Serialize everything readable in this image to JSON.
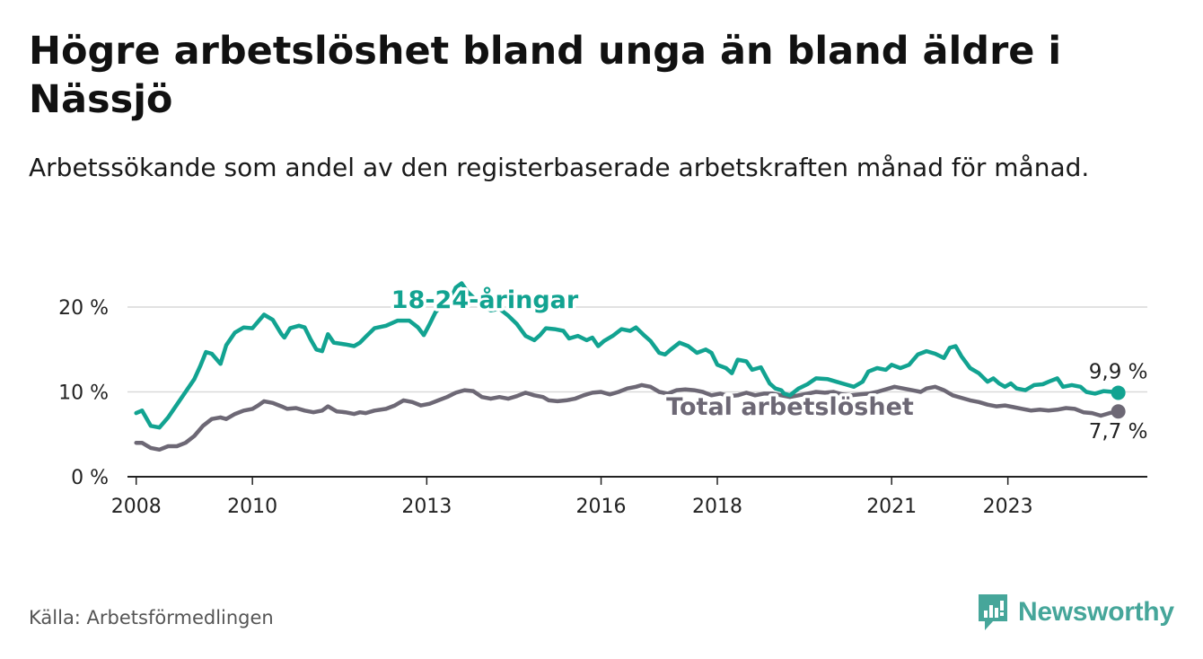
{
  "title": "Högre arbetslöshet bland unga än bland äldre i Nässjö",
  "subtitle": "Arbetssökande som andel av den registerbaserade arbetskraften månad för månad.",
  "source": "Källa: Arbetsförmedlingen",
  "brand": {
    "name": "Newsworthy",
    "icon": "newsworthy-logo-icon",
    "color": "#46a69a"
  },
  "chart_data": {
    "type": "line",
    "title": "Högre arbetslöshet bland unga än bland äldre i Nässjö",
    "xlabel": "",
    "ylabel": "",
    "xlim": [
      2007.85,
      2025.4
    ],
    "ylim": [
      0,
      20
    ],
    "y_ticks": [
      0,
      10,
      20
    ],
    "y_tick_labels": [
      "0 %",
      "10 %",
      "20 %"
    ],
    "x_ticks": [
      2008,
      2010,
      2013,
      2016,
      2018,
      2021,
      2023
    ],
    "x_tick_labels": [
      "2008",
      "2010",
      "2013",
      "2016",
      "2018",
      "2021",
      "2023"
    ],
    "grid": true,
    "series": [
      {
        "name": "18-24-åringar",
        "label": "18-24-åringar",
        "color": "#12a391",
        "end_label": "9,9 %",
        "points": [
          [
            2008.0,
            7.5
          ],
          [
            2008.1,
            7.8
          ],
          [
            2008.25,
            6.0
          ],
          [
            2008.4,
            5.8
          ],
          [
            2008.55,
            7.0
          ],
          [
            2008.7,
            8.5
          ],
          [
            2008.85,
            10.0
          ],
          [
            2009.0,
            11.5
          ],
          [
            2009.1,
            13.0
          ],
          [
            2009.2,
            14.7
          ],
          [
            2009.3,
            14.5
          ],
          [
            2009.45,
            13.3
          ],
          [
            2009.55,
            15.5
          ],
          [
            2009.7,
            17.0
          ],
          [
            2009.85,
            17.6
          ],
          [
            2010.0,
            17.5
          ],
          [
            2010.1,
            18.3
          ],
          [
            2010.2,
            19.1
          ],
          [
            2010.35,
            18.5
          ],
          [
            2010.5,
            16.8
          ],
          [
            2010.55,
            16.4
          ],
          [
            2010.65,
            17.5
          ],
          [
            2010.8,
            17.8
          ],
          [
            2010.9,
            17.6
          ],
          [
            2011.0,
            16.2
          ],
          [
            2011.1,
            15.0
          ],
          [
            2011.2,
            14.8
          ],
          [
            2011.3,
            16.8
          ],
          [
            2011.4,
            15.8
          ],
          [
            2011.6,
            15.6
          ],
          [
            2011.75,
            15.4
          ],
          [
            2011.85,
            15.8
          ],
          [
            2011.95,
            16.5
          ],
          [
            2012.1,
            17.5
          ],
          [
            2012.3,
            17.8
          ],
          [
            2012.5,
            18.4
          ],
          [
            2012.7,
            18.4
          ],
          [
            2012.85,
            17.6
          ],
          [
            2012.95,
            16.7
          ],
          [
            2013.05,
            18.0
          ],
          [
            2013.15,
            19.4
          ],
          [
            2013.35,
            20.8
          ],
          [
            2013.45,
            21.5
          ],
          [
            2013.5,
            22.3
          ],
          [
            2013.6,
            22.8
          ],
          [
            2013.7,
            21.8
          ],
          [
            2013.85,
            20.8
          ],
          [
            2014.0,
            20.0
          ],
          [
            2014.1,
            19.6
          ],
          [
            2014.25,
            19.8
          ],
          [
            2014.4,
            19.0
          ],
          [
            2014.55,
            18.0
          ],
          [
            2014.7,
            16.6
          ],
          [
            2014.85,
            16.1
          ],
          [
            2014.95,
            16.7
          ],
          [
            2015.05,
            17.5
          ],
          [
            2015.2,
            17.4
          ],
          [
            2015.35,
            17.2
          ],
          [
            2015.45,
            16.3
          ],
          [
            2015.6,
            16.6
          ],
          [
            2015.75,
            16.1
          ],
          [
            2015.85,
            16.4
          ],
          [
            2015.95,
            15.4
          ],
          [
            2016.05,
            16.0
          ],
          [
            2016.2,
            16.6
          ],
          [
            2016.35,
            17.4
          ],
          [
            2016.5,
            17.2
          ],
          [
            2016.6,
            17.6
          ],
          [
            2016.75,
            16.6
          ],
          [
            2016.85,
            16.0
          ],
          [
            2017.0,
            14.6
          ],
          [
            2017.1,
            14.4
          ],
          [
            2017.2,
            15.0
          ],
          [
            2017.35,
            15.8
          ],
          [
            2017.5,
            15.4
          ],
          [
            2017.65,
            14.6
          ],
          [
            2017.8,
            15.0
          ],
          [
            2017.9,
            14.6
          ],
          [
            2018.0,
            13.2
          ],
          [
            2018.15,
            12.8
          ],
          [
            2018.25,
            12.2
          ],
          [
            2018.35,
            13.8
          ],
          [
            2018.5,
            13.6
          ],
          [
            2018.6,
            12.6
          ],
          [
            2018.75,
            12.9
          ],
          [
            2018.9,
            11.0
          ],
          [
            2019.0,
            10.4
          ],
          [
            2019.1,
            10.2
          ],
          [
            2019.15,
            9.8
          ],
          [
            2019.25,
            9.6
          ],
          [
            2019.4,
            10.4
          ],
          [
            2019.55,
            10.9
          ],
          [
            2019.7,
            11.6
          ],
          [
            2019.9,
            11.5
          ],
          [
            2020.05,
            11.2
          ],
          [
            2020.2,
            10.9
          ],
          [
            2020.35,
            10.6
          ],
          [
            2020.5,
            11.2
          ],
          [
            2020.6,
            12.4
          ],
          [
            2020.75,
            12.8
          ],
          [
            2020.9,
            12.6
          ],
          [
            2021.0,
            13.2
          ],
          [
            2021.15,
            12.8
          ],
          [
            2021.3,
            13.2
          ],
          [
            2021.45,
            14.4
          ],
          [
            2021.6,
            14.8
          ],
          [
            2021.75,
            14.5
          ],
          [
            2021.9,
            14.0
          ],
          [
            2022.0,
            15.2
          ],
          [
            2022.1,
            15.4
          ],
          [
            2022.2,
            14.2
          ],
          [
            2022.35,
            12.8
          ],
          [
            2022.5,
            12.2
          ],
          [
            2022.65,
            11.2
          ],
          [
            2022.75,
            11.6
          ],
          [
            2022.85,
            11.0
          ],
          [
            2022.95,
            10.6
          ],
          [
            2023.05,
            11.0
          ],
          [
            2023.15,
            10.4
          ],
          [
            2023.3,
            10.2
          ],
          [
            2023.45,
            10.8
          ],
          [
            2023.6,
            10.9
          ],
          [
            2023.7,
            11.2
          ],
          [
            2023.85,
            11.6
          ],
          [
            2023.95,
            10.6
          ],
          [
            2024.1,
            10.8
          ],
          [
            2024.25,
            10.6
          ],
          [
            2024.35,
            10.0
          ],
          [
            2024.5,
            9.8
          ],
          [
            2024.65,
            10.1
          ],
          [
            2024.8,
            10.0
          ],
          [
            2024.9,
            9.9
          ]
        ]
      },
      {
        "name": "Total arbetslöshet",
        "label": "Total arbetslöshet",
        "color": "#6d6875",
        "end_label": "7,7 %",
        "points": [
          [
            2008.0,
            4.0
          ],
          [
            2008.1,
            4.0
          ],
          [
            2008.25,
            3.4
          ],
          [
            2008.4,
            3.2
          ],
          [
            2008.55,
            3.6
          ],
          [
            2008.7,
            3.6
          ],
          [
            2008.85,
            4.0
          ],
          [
            2009.0,
            4.8
          ],
          [
            2009.15,
            6.0
          ],
          [
            2009.3,
            6.8
          ],
          [
            2009.45,
            7.0
          ],
          [
            2009.55,
            6.8
          ],
          [
            2009.7,
            7.4
          ],
          [
            2009.85,
            7.8
          ],
          [
            2010.0,
            8.0
          ],
          [
            2010.1,
            8.4
          ],
          [
            2010.2,
            8.9
          ],
          [
            2010.35,
            8.7
          ],
          [
            2010.5,
            8.3
          ],
          [
            2010.6,
            8.0
          ],
          [
            2010.75,
            8.1
          ],
          [
            2010.9,
            7.8
          ],
          [
            2011.05,
            7.6
          ],
          [
            2011.2,
            7.8
          ],
          [
            2011.3,
            8.3
          ],
          [
            2011.45,
            7.7
          ],
          [
            2011.6,
            7.6
          ],
          [
            2011.75,
            7.4
          ],
          [
            2011.85,
            7.6
          ],
          [
            2011.95,
            7.5
          ],
          [
            2012.1,
            7.8
          ],
          [
            2012.3,
            8.0
          ],
          [
            2012.45,
            8.4
          ],
          [
            2012.6,
            9.0
          ],
          [
            2012.75,
            8.8
          ],
          [
            2012.9,
            8.4
          ],
          [
            2013.05,
            8.6
          ],
          [
            2013.2,
            9.0
          ],
          [
            2013.35,
            9.4
          ],
          [
            2013.5,
            9.9
          ],
          [
            2013.65,
            10.2
          ],
          [
            2013.8,
            10.1
          ],
          [
            2013.95,
            9.4
          ],
          [
            2014.1,
            9.2
          ],
          [
            2014.25,
            9.4
          ],
          [
            2014.4,
            9.2
          ],
          [
            2014.55,
            9.5
          ],
          [
            2014.7,
            9.9
          ],
          [
            2014.85,
            9.6
          ],
          [
            2015.0,
            9.4
          ],
          [
            2015.1,
            9.0
          ],
          [
            2015.25,
            8.9
          ],
          [
            2015.4,
            9.0
          ],
          [
            2015.55,
            9.2
          ],
          [
            2015.7,
            9.6
          ],
          [
            2015.85,
            9.9
          ],
          [
            2016.0,
            10.0
          ],
          [
            2016.15,
            9.7
          ],
          [
            2016.3,
            10.0
          ],
          [
            2016.45,
            10.4
          ],
          [
            2016.6,
            10.6
          ],
          [
            2016.7,
            10.8
          ],
          [
            2016.85,
            10.6
          ],
          [
            2017.0,
            10.0
          ],
          [
            2017.15,
            9.8
          ],
          [
            2017.3,
            10.2
          ],
          [
            2017.45,
            10.3
          ],
          [
            2017.6,
            10.2
          ],
          [
            2017.75,
            10.0
          ],
          [
            2017.9,
            9.6
          ],
          [
            2018.05,
            9.8
          ],
          [
            2018.2,
            9.5
          ],
          [
            2018.35,
            9.6
          ],
          [
            2018.5,
            9.9
          ],
          [
            2018.65,
            9.6
          ],
          [
            2018.8,
            9.8
          ],
          [
            2018.95,
            9.8
          ],
          [
            2019.1,
            9.6
          ],
          [
            2019.25,
            9.4
          ],
          [
            2019.4,
            9.6
          ],
          [
            2019.55,
            9.8
          ],
          [
            2019.7,
            10.0
          ],
          [
            2019.85,
            9.9
          ],
          [
            2020.0,
            10.0
          ],
          [
            2020.15,
            9.7
          ],
          [
            2020.3,
            9.6
          ],
          [
            2020.45,
            9.7
          ],
          [
            2020.6,
            9.8
          ],
          [
            2020.75,
            10.0
          ],
          [
            2020.9,
            10.3
          ],
          [
            2021.05,
            10.6
          ],
          [
            2021.2,
            10.4
          ],
          [
            2021.35,
            10.2
          ],
          [
            2021.5,
            10.0
          ],
          [
            2021.6,
            10.4
          ],
          [
            2021.75,
            10.6
          ],
          [
            2021.9,
            10.2
          ],
          [
            2022.05,
            9.6
          ],
          [
            2022.2,
            9.3
          ],
          [
            2022.35,
            9.0
          ],
          [
            2022.5,
            8.8
          ],
          [
            2022.65,
            8.5
          ],
          [
            2022.8,
            8.3
          ],
          [
            2022.95,
            8.4
          ],
          [
            2023.1,
            8.2
          ],
          [
            2023.25,
            8.0
          ],
          [
            2023.4,
            7.8
          ],
          [
            2023.55,
            7.9
          ],
          [
            2023.7,
            7.8
          ],
          [
            2023.85,
            7.9
          ],
          [
            2024.0,
            8.1
          ],
          [
            2024.15,
            8.0
          ],
          [
            2024.3,
            7.6
          ],
          [
            2024.45,
            7.5
          ],
          [
            2024.6,
            7.2
          ],
          [
            2024.75,
            7.5
          ],
          [
            2024.9,
            7.7
          ]
        ]
      }
    ]
  }
}
